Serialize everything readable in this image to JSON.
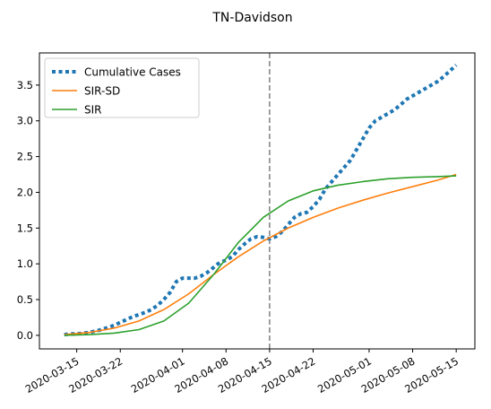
{
  "chart_data": {
    "type": "line",
    "title": "TN-Davidson",
    "xlabel": "",
    "ylabel": "",
    "x_range": [
      "2020-03-09",
      "2020-05-18"
    ],
    "ylim": [
      -0.19,
      3.95
    ],
    "y_ticks": [
      0.0,
      0.5,
      1.0,
      1.5,
      2.0,
      2.5,
      3.0,
      3.5
    ],
    "y_tick_labels": [
      "0.0",
      "0.5",
      "1.0",
      "1.5",
      "2.0",
      "2.5",
      "3.0",
      "3.5"
    ],
    "x_ticks": [
      "2020-03-15",
      "2020-03-22",
      "2020-04-01",
      "2020-04-08",
      "2020-04-15",
      "2020-04-22",
      "2020-05-01",
      "2020-05-08",
      "2020-05-15"
    ],
    "x_tick_labels": [
      "2020-03-15",
      "2020-03-22",
      "2020-04-01",
      "2020-04-08",
      "2020-04-15",
      "2020-04-22",
      "2020-05-01",
      "2020-05-08",
      "2020-05-15"
    ],
    "vline": {
      "x": "2020-04-15",
      "color": "#7f7f7f",
      "style": "dashed"
    },
    "legend_position": "top-left",
    "grid": false,
    "series": [
      {
        "name": "Cumulative Cases",
        "color": "#1f77b4",
        "style": "dotted",
        "x": [
          "2020-03-13",
          "2020-03-14",
          "2020-03-15",
          "2020-03-16",
          "2020-03-17",
          "2020-03-18",
          "2020-03-19",
          "2020-03-20",
          "2020-03-21",
          "2020-03-22",
          "2020-03-23",
          "2020-03-24",
          "2020-03-25",
          "2020-03-26",
          "2020-03-27",
          "2020-03-28",
          "2020-03-29",
          "2020-03-30",
          "2020-03-31",
          "2020-04-01",
          "2020-04-02",
          "2020-04-03",
          "2020-04-04",
          "2020-04-05",
          "2020-04-06",
          "2020-04-07",
          "2020-04-08",
          "2020-04-09",
          "2020-04-10",
          "2020-04-11",
          "2020-04-12",
          "2020-04-13",
          "2020-04-14",
          "2020-04-15",
          "2020-04-16",
          "2020-04-17",
          "2020-04-18",
          "2020-04-19",
          "2020-04-20",
          "2020-04-21",
          "2020-04-22",
          "2020-04-23",
          "2020-04-24",
          "2020-04-25",
          "2020-04-26",
          "2020-04-27",
          "2020-04-28",
          "2020-04-29",
          "2020-04-30",
          "2020-05-01",
          "2020-05-02",
          "2020-05-03",
          "2020-05-04",
          "2020-05-05",
          "2020-05-06",
          "2020-05-07",
          "2020-05-08",
          "2020-05-09",
          "2020-05-10",
          "2020-05-11",
          "2020-05-12",
          "2020-05-13",
          "2020-05-14",
          "2020-05-15"
        ],
        "values": [
          0.01,
          0.02,
          0.02,
          0.03,
          0.04,
          0.06,
          0.08,
          0.11,
          0.14,
          0.18,
          0.22,
          0.26,
          0.29,
          0.32,
          0.36,
          0.42,
          0.5,
          0.6,
          0.75,
          0.8,
          0.8,
          0.8,
          0.83,
          0.88,
          0.95,
          1.02,
          1.05,
          1.1,
          1.2,
          1.28,
          1.35,
          1.38,
          1.37,
          1.35,
          1.38,
          1.45,
          1.55,
          1.65,
          1.7,
          1.72,
          1.8,
          1.9,
          2.05,
          2.15,
          2.25,
          2.35,
          2.45,
          2.6,
          2.75,
          2.9,
          3.0,
          3.05,
          3.1,
          3.15,
          3.22,
          3.3,
          3.35,
          3.4,
          3.45,
          3.5,
          3.55,
          3.62,
          3.7,
          3.78
        ]
      },
      {
        "name": "SIR-SD",
        "color": "#ff7f0e",
        "style": "solid",
        "x": [
          "2020-03-13",
          "2020-03-17",
          "2020-03-21",
          "2020-03-25",
          "2020-03-29",
          "2020-04-02",
          "2020-04-06",
          "2020-04-10",
          "2020-04-14",
          "2020-04-18",
          "2020-04-22",
          "2020-04-26",
          "2020-04-30",
          "2020-05-04",
          "2020-05-08",
          "2020-05-12",
          "2020-05-15"
        ],
        "values": [
          0.01,
          0.04,
          0.1,
          0.2,
          0.36,
          0.58,
          0.85,
          1.1,
          1.32,
          1.5,
          1.65,
          1.78,
          1.89,
          1.99,
          2.08,
          2.17,
          2.25
        ]
      },
      {
        "name": "SIR",
        "color": "#2ca02c",
        "style": "solid",
        "x": [
          "2020-03-13",
          "2020-03-17",
          "2020-03-21",
          "2020-03-25",
          "2020-03-29",
          "2020-04-02",
          "2020-04-06",
          "2020-04-10",
          "2020-04-14",
          "2020-04-18",
          "2020-04-22",
          "2020-04-26",
          "2020-04-30",
          "2020-05-04",
          "2020-05-08",
          "2020-05-12",
          "2020-05-15"
        ],
        "values": [
          0.0,
          0.01,
          0.03,
          0.08,
          0.2,
          0.45,
          0.85,
          1.3,
          1.65,
          1.88,
          2.02,
          2.1,
          2.15,
          2.19,
          2.21,
          2.22,
          2.23
        ]
      }
    ]
  }
}
